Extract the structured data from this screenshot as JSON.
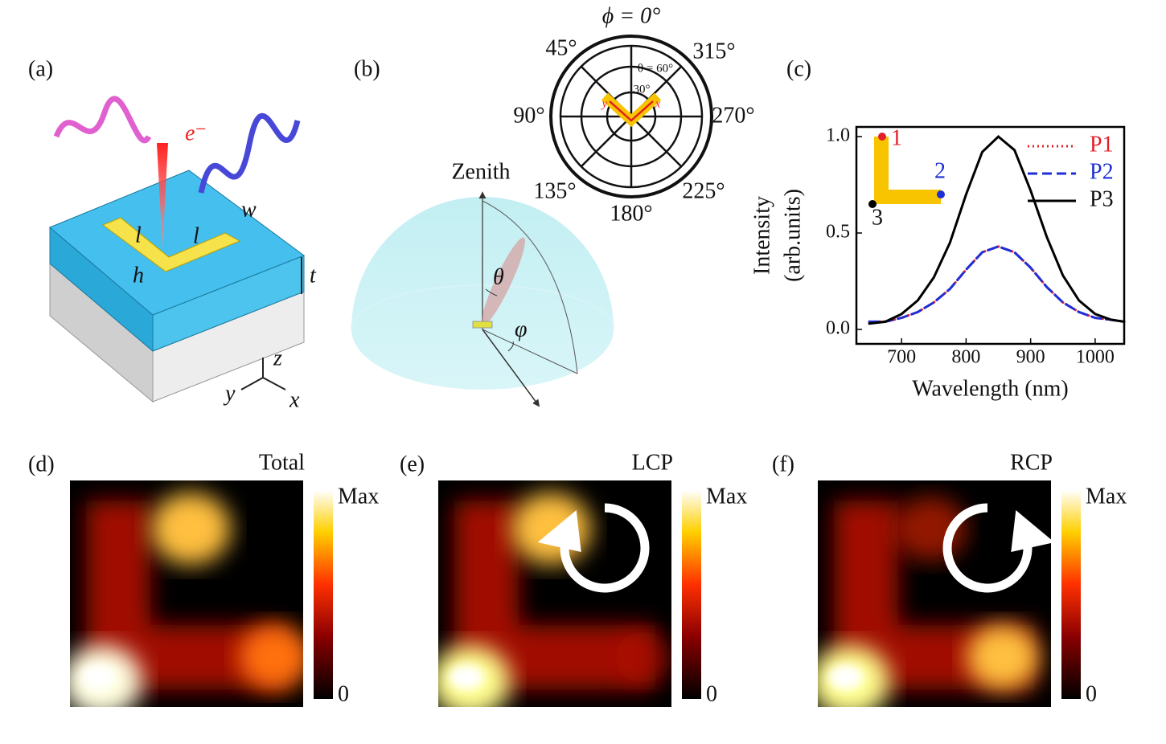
{
  "panel_labels": [
    "(a)",
    "(b)",
    "(c)",
    "(d)",
    "(e)",
    "(f)"
  ],
  "panel_a": {
    "electron": "e⁻",
    "length_1": "l",
    "length_2": "l",
    "width": "w",
    "height": "h",
    "thickness": "t",
    "axis_z": "z",
    "axis_y": "y",
    "axis_x": "x"
  },
  "panel_b": {
    "zenith": "Zenith",
    "theta": "θ",
    "azimuth": "φ",
    "polar": {
      "top": "ϕ = 0°",
      "angles": [
        "45°",
        "315°",
        "90°",
        "270°",
        "135°",
        "225°",
        "180°"
      ],
      "ring_outer": "θ = 60°",
      "ring_inner": "30°",
      "axis_y": "y",
      "axis_x": "x"
    }
  },
  "chart_data": {
    "type": "line",
    "xlabel": "Wavelength (nm)",
    "ylabel": [
      "Intensity",
      "(arb.units)"
    ],
    "x": [
      650,
      675,
      700,
      725,
      750,
      775,
      800,
      825,
      850,
      875,
      900,
      925,
      950,
      975,
      1000,
      1025,
      1045
    ],
    "series": [
      {
        "name": "P1",
        "color": "#e3202a",
        "style": "dotted",
        "values": [
          0.04,
          0.04,
          0.06,
          0.09,
          0.14,
          0.21,
          0.31,
          0.4,
          0.43,
          0.4,
          0.32,
          0.22,
          0.14,
          0.09,
          0.06,
          0.05,
          0.04
        ]
      },
      {
        "name": "P2",
        "color": "#1f2fd6",
        "style": "dashed",
        "values": [
          0.04,
          0.04,
          0.06,
          0.09,
          0.14,
          0.21,
          0.31,
          0.4,
          0.43,
          0.4,
          0.32,
          0.22,
          0.14,
          0.09,
          0.06,
          0.05,
          0.04
        ]
      },
      {
        "name": "P3",
        "color": "#000000",
        "style": "solid",
        "values": [
          0.03,
          0.04,
          0.08,
          0.15,
          0.27,
          0.45,
          0.7,
          0.92,
          1.0,
          0.93,
          0.72,
          0.48,
          0.28,
          0.15,
          0.08,
          0.05,
          0.04
        ]
      }
    ],
    "xlim": [
      630,
      1045
    ],
    "ylim": [
      -0.075,
      1.05
    ],
    "xticks": [
      700,
      800,
      900,
      1000
    ],
    "yticks": [
      {
        "value": 0,
        "label": "0.0"
      },
      {
        "value": 0.5,
        "label": "0.5"
      },
      {
        "value": 1,
        "label": "1.0"
      }
    ],
    "legend": "upper right",
    "inset_points": [
      "1",
      "2",
      "3"
    ]
  },
  "maps": [
    {
      "title": "Total",
      "max": "Max",
      "min": "0"
    },
    {
      "title": "LCP",
      "max": "Max",
      "min": "0"
    },
    {
      "title": "RCP",
      "max": "Max",
      "min": "0"
    }
  ]
}
